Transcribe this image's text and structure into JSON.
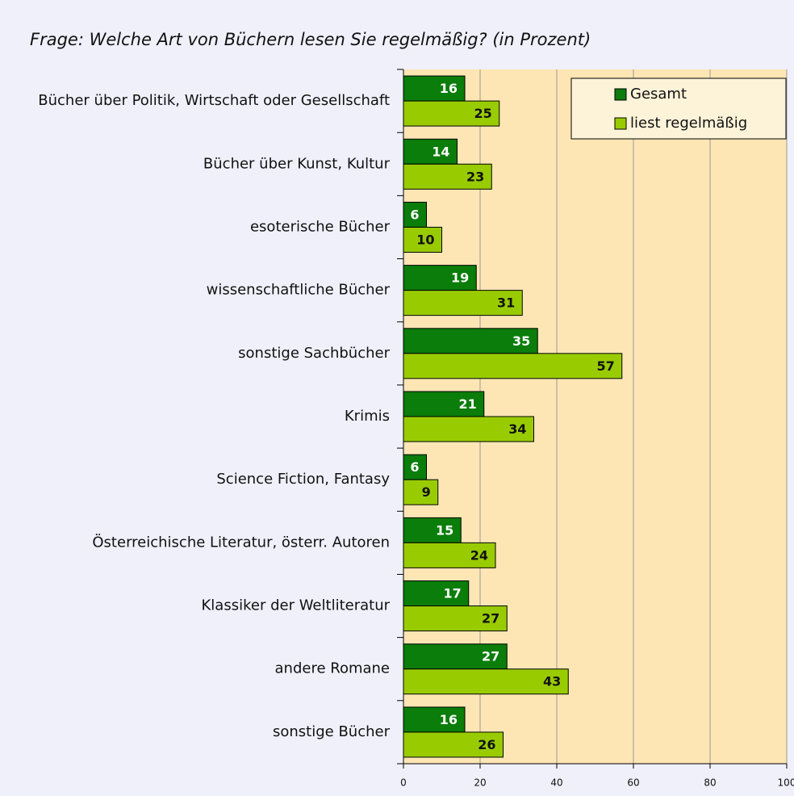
{
  "chart_data": {
    "type": "barh",
    "title": "Frage: Welche Art von Büchern lesen Sie regelmäßig? (in Prozent)",
    "categories": [
      "Bücher über Politik, Wirtschaft oder Gesellschaft",
      "Bücher über Kunst, Kultur",
      "esoterische Bücher",
      "wissenschaftliche Bücher",
      "sonstige Sachbücher",
      "Krimis",
      "Science Fiction, Fantasy",
      "Österreichische Literatur, österr. Autoren",
      "Klassiker der Weltliteratur",
      "andere Romane",
      "sonstige Bücher"
    ],
    "series": [
      {
        "name": "Gesamt",
        "color": "#0a7d0a",
        "values": [
          16,
          14,
          6,
          19,
          35,
          21,
          6,
          15,
          17,
          27,
          16
        ]
      },
      {
        "name": "liest regelmäßig",
        "color": "#99cc00",
        "values": [
          25,
          23,
          10,
          31,
          57,
          34,
          9,
          24,
          27,
          43,
          26
        ]
      }
    ],
    "xlim": [
      0,
      100
    ],
    "xticks": [
      0,
      20,
      40,
      60,
      80,
      100
    ],
    "grid": true,
    "legend": "top-right"
  }
}
